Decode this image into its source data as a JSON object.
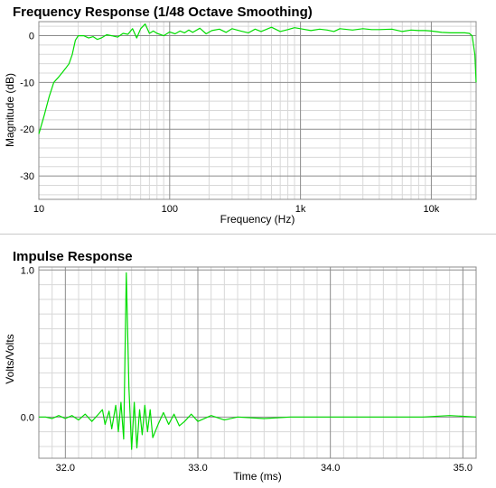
{
  "chart_data": [
    {
      "type": "line",
      "title": "Frequency Response (1/48 Octave Smoothing)",
      "xlabel": "Frequency (Hz)",
      "ylabel": "Magnitude (dB)",
      "xscale": "log",
      "xlim": [
        10,
        22000
      ],
      "ylim": [
        -35,
        3
      ],
      "grid": true,
      "x_tick_labels": [
        {
          "value": 10,
          "label": "10"
        },
        {
          "value": 100,
          "label": "100"
        },
        {
          "value": 1000,
          "label": "1k"
        },
        {
          "value": 10000,
          "label": "10k"
        }
      ],
      "y_tick_labels": [
        {
          "value": 0,
          "label": "0"
        },
        {
          "value": -10,
          "label": "-10"
        },
        {
          "value": -20,
          "label": "-20"
        },
        {
          "value": -30,
          "label": "-30"
        }
      ],
      "series": [
        {
          "color": "#00dd00",
          "x": [
            10,
            11,
            12,
            13,
            14,
            15,
            16,
            17,
            18,
            19,
            20,
            22,
            24,
            26,
            28,
            30,
            33,
            36,
            40,
            44,
            48,
            52,
            56,
            60,
            65,
            70,
            75,
            80,
            90,
            100,
            110,
            120,
            130,
            140,
            150,
            170,
            190,
            210,
            240,
            270,
            300,
            350,
            400,
            450,
            500,
            600,
            700,
            800,
            900,
            1000,
            1200,
            1400,
            1600,
            1800,
            2000,
            2500,
            3000,
            3500,
            4000,
            5000,
            6000,
            7000,
            8000,
            9000,
            10000,
            12000,
            14000,
            16000,
            18000,
            19500,
            20500,
            21500,
            22000
          ],
          "y": [
            -21,
            -17,
            -13,
            -10,
            -9,
            -8,
            -7,
            -6,
            -4,
            -1,
            0,
            0,
            -0.5,
            -0.2,
            -0.8,
            -0.5,
            0.2,
            0,
            -0.3,
            0.5,
            0.3,
            1.5,
            -0.5,
            1.5,
            2.5,
            0.5,
            1,
            0.5,
            0,
            0.8,
            0.4,
            1,
            0.6,
            1.2,
            0.7,
            1.6,
            0.4,
            1.1,
            1.4,
            0.7,
            1.5,
            1,
            0.6,
            1.4,
            0.9,
            1.8,
            0.9,
            1.3,
            1.7,
            1.5,
            1.1,
            1.4,
            1.2,
            0.9,
            1.5,
            1.2,
            1.5,
            1.3,
            1.3,
            1.4,
            0.9,
            1.2,
            1.1,
            1.1,
            1.0,
            0.7,
            0.6,
            0.6,
            0.6,
            0.5,
            0,
            -4,
            -10
          ]
        }
      ]
    },
    {
      "type": "line",
      "title": "Impulse Response",
      "xlabel": "Time (ms)",
      "ylabel": "Volts/Volts",
      "xlim": [
        31.8,
        35.1
      ],
      "ylim": [
        -0.28,
        1.02
      ],
      "grid": true,
      "x_tick_labels": [
        {
          "value": 32,
          "label": "32.0"
        },
        {
          "value": 33,
          "label": "33.0"
        },
        {
          "value": 34,
          "label": "34.0"
        },
        {
          "value": 35,
          "label": "35.0"
        }
      ],
      "y_tick_labels": [
        {
          "value": 1,
          "label": "1.0"
        },
        {
          "value": 0,
          "label": "0.0"
        }
      ],
      "series": [
        {
          "color": "#00dd00",
          "x": [
            31.8,
            31.85,
            31.9,
            31.95,
            32.0,
            32.05,
            32.1,
            32.15,
            32.2,
            32.25,
            32.28,
            32.3,
            32.33,
            32.35,
            32.38,
            32.4,
            32.42,
            32.44,
            32.46,
            32.48,
            32.5,
            32.52,
            32.54,
            32.56,
            32.58,
            32.6,
            32.62,
            32.64,
            32.66,
            32.7,
            32.74,
            32.78,
            32.82,
            32.86,
            32.9,
            32.95,
            33.0,
            33.1,
            33.2,
            33.3,
            33.5,
            33.7,
            33.9,
            34.1,
            34.3,
            34.5,
            34.7,
            34.9,
            35.1
          ],
          "y": [
            0.0,
            0.0,
            -0.01,
            0.01,
            -0.01,
            0.01,
            -0.02,
            0.02,
            -0.03,
            0.02,
            0.05,
            -0.05,
            0.04,
            -0.08,
            0.08,
            -0.1,
            0.1,
            -0.15,
            0.98,
            0.2,
            -0.22,
            0.1,
            -0.21,
            0.05,
            -0.12,
            0.08,
            -0.1,
            0.05,
            -0.14,
            -0.05,
            0.03,
            -0.05,
            0.02,
            -0.06,
            -0.03,
            0.02,
            -0.03,
            0.01,
            -0.02,
            0.0,
            -0.01,
            0.0,
            0.0,
            0.0,
            0.0,
            0.0,
            0.0,
            0.01,
            0.0
          ]
        }
      ]
    }
  ]
}
